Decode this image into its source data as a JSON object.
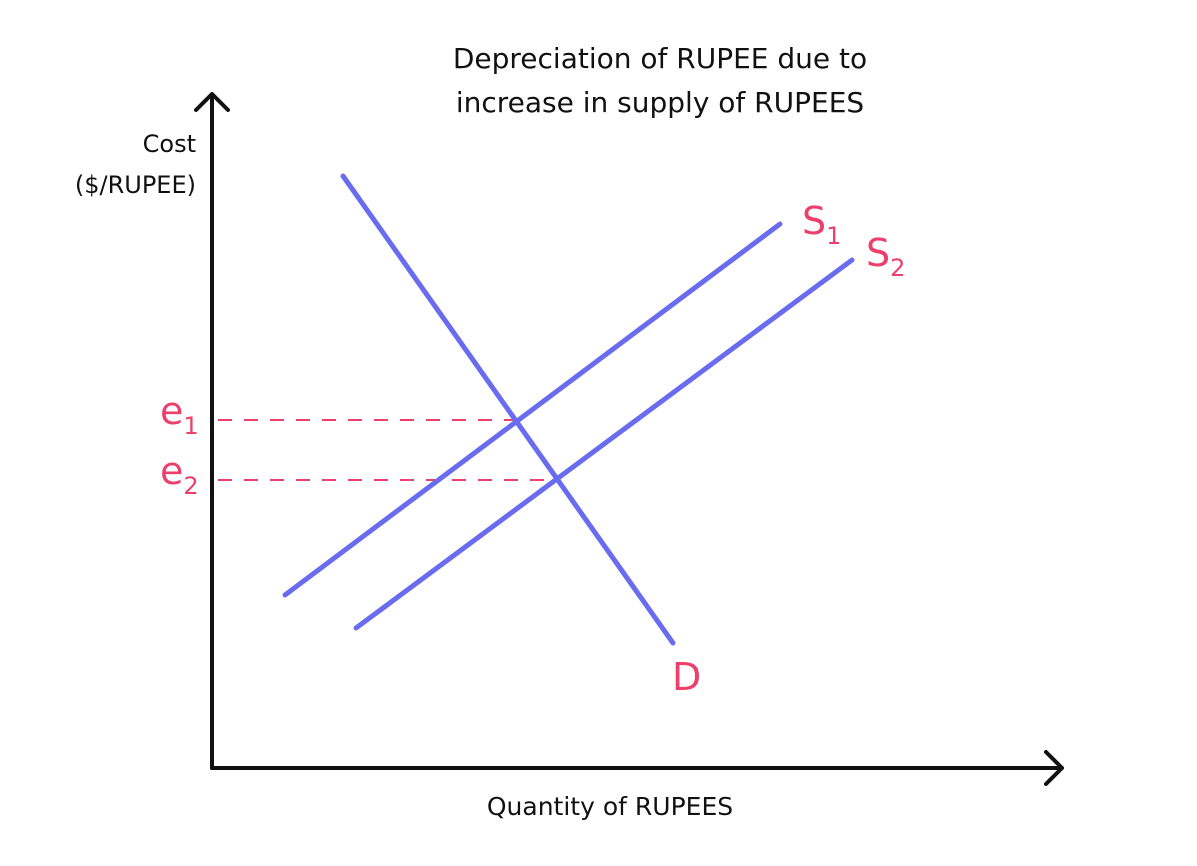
{
  "title": {
    "lines": [
      "Depreciation of RUPEE due to",
      "increase in supply of RUPEES"
    ]
  },
  "y_axis_label": {
    "lines": [
      "Cost",
      "($/RUPEE)"
    ]
  },
  "x_axis_label": "Quantity of RUPEES",
  "curves": [
    {
      "main": "S",
      "sub": "1"
    },
    {
      "main": "S",
      "sub": "2"
    },
    {
      "main": "D"
    }
  ],
  "levels": [
    {
      "main": "e",
      "sub": "1"
    },
    {
      "main": "e",
      "sub": "2"
    }
  ]
}
